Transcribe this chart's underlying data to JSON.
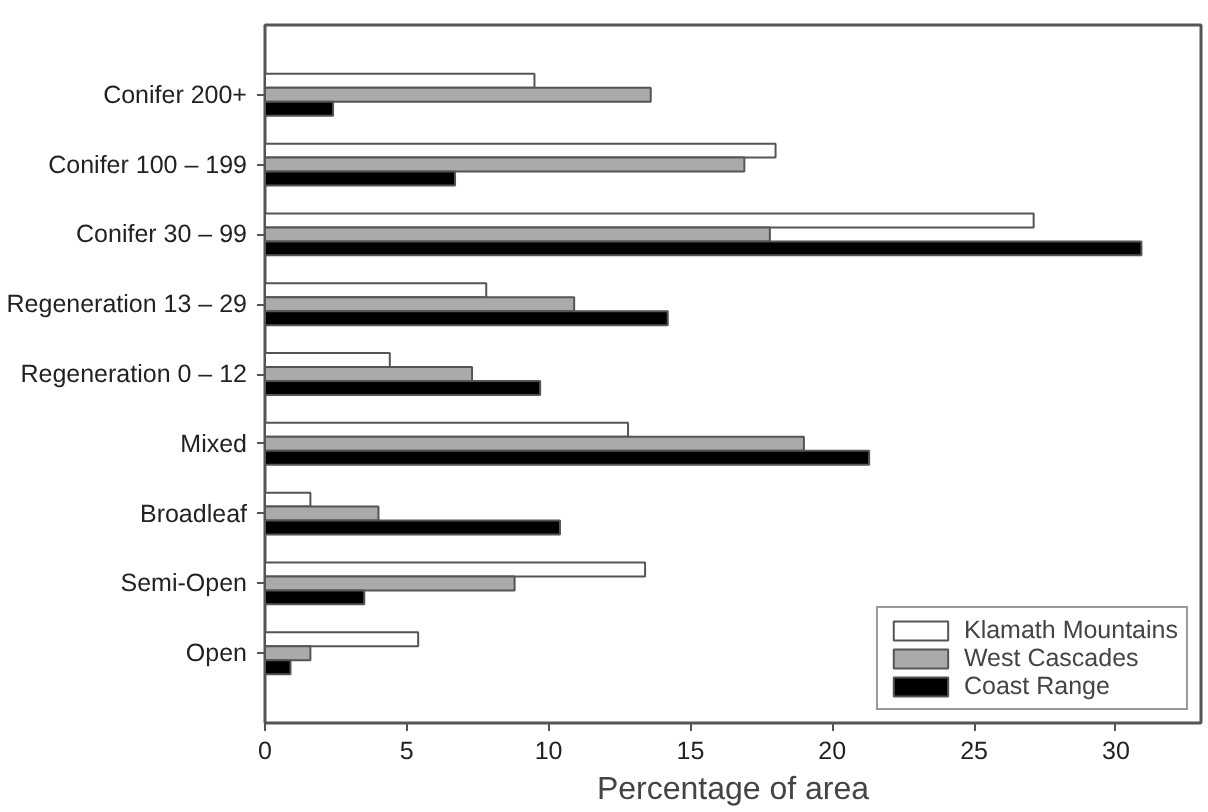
{
  "chart_data": {
    "type": "bar",
    "orientation": "horizontal",
    "xlabel": "Percentage of area",
    "categories": [
      "Conifer 200+",
      "Conifer 100 – 199",
      "Conifer 30 – 99",
      "Regeneration 13 – 29",
      "Regeneration 0 – 12",
      "Mixed",
      "Broadleaf",
      "Semi-Open",
      "Open"
    ],
    "series": [
      {
        "name": "Klamath Mountains",
        "color": "#ffffff",
        "values": [
          9.5,
          18.0,
          27.1,
          7.8,
          4.4,
          12.8,
          1.6,
          13.4,
          5.4
        ]
      },
      {
        "name": "West Cascades",
        "color": "#aaaaaa",
        "values": [
          13.6,
          16.9,
          17.8,
          10.9,
          7.3,
          19.0,
          4.0,
          8.8,
          1.6
        ]
      },
      {
        "name": "Coast Range",
        "color": "#000000",
        "values": [
          2.4,
          6.7,
          30.9,
          14.2,
          9.7,
          21.3,
          10.4,
          3.5,
          0.9
        ]
      }
    ],
    "xlim": [
      0,
      33
    ],
    "xticks": [
      0,
      5,
      10,
      15,
      20,
      25,
      30
    ],
    "grid": false,
    "legend": "bottom right"
  }
}
